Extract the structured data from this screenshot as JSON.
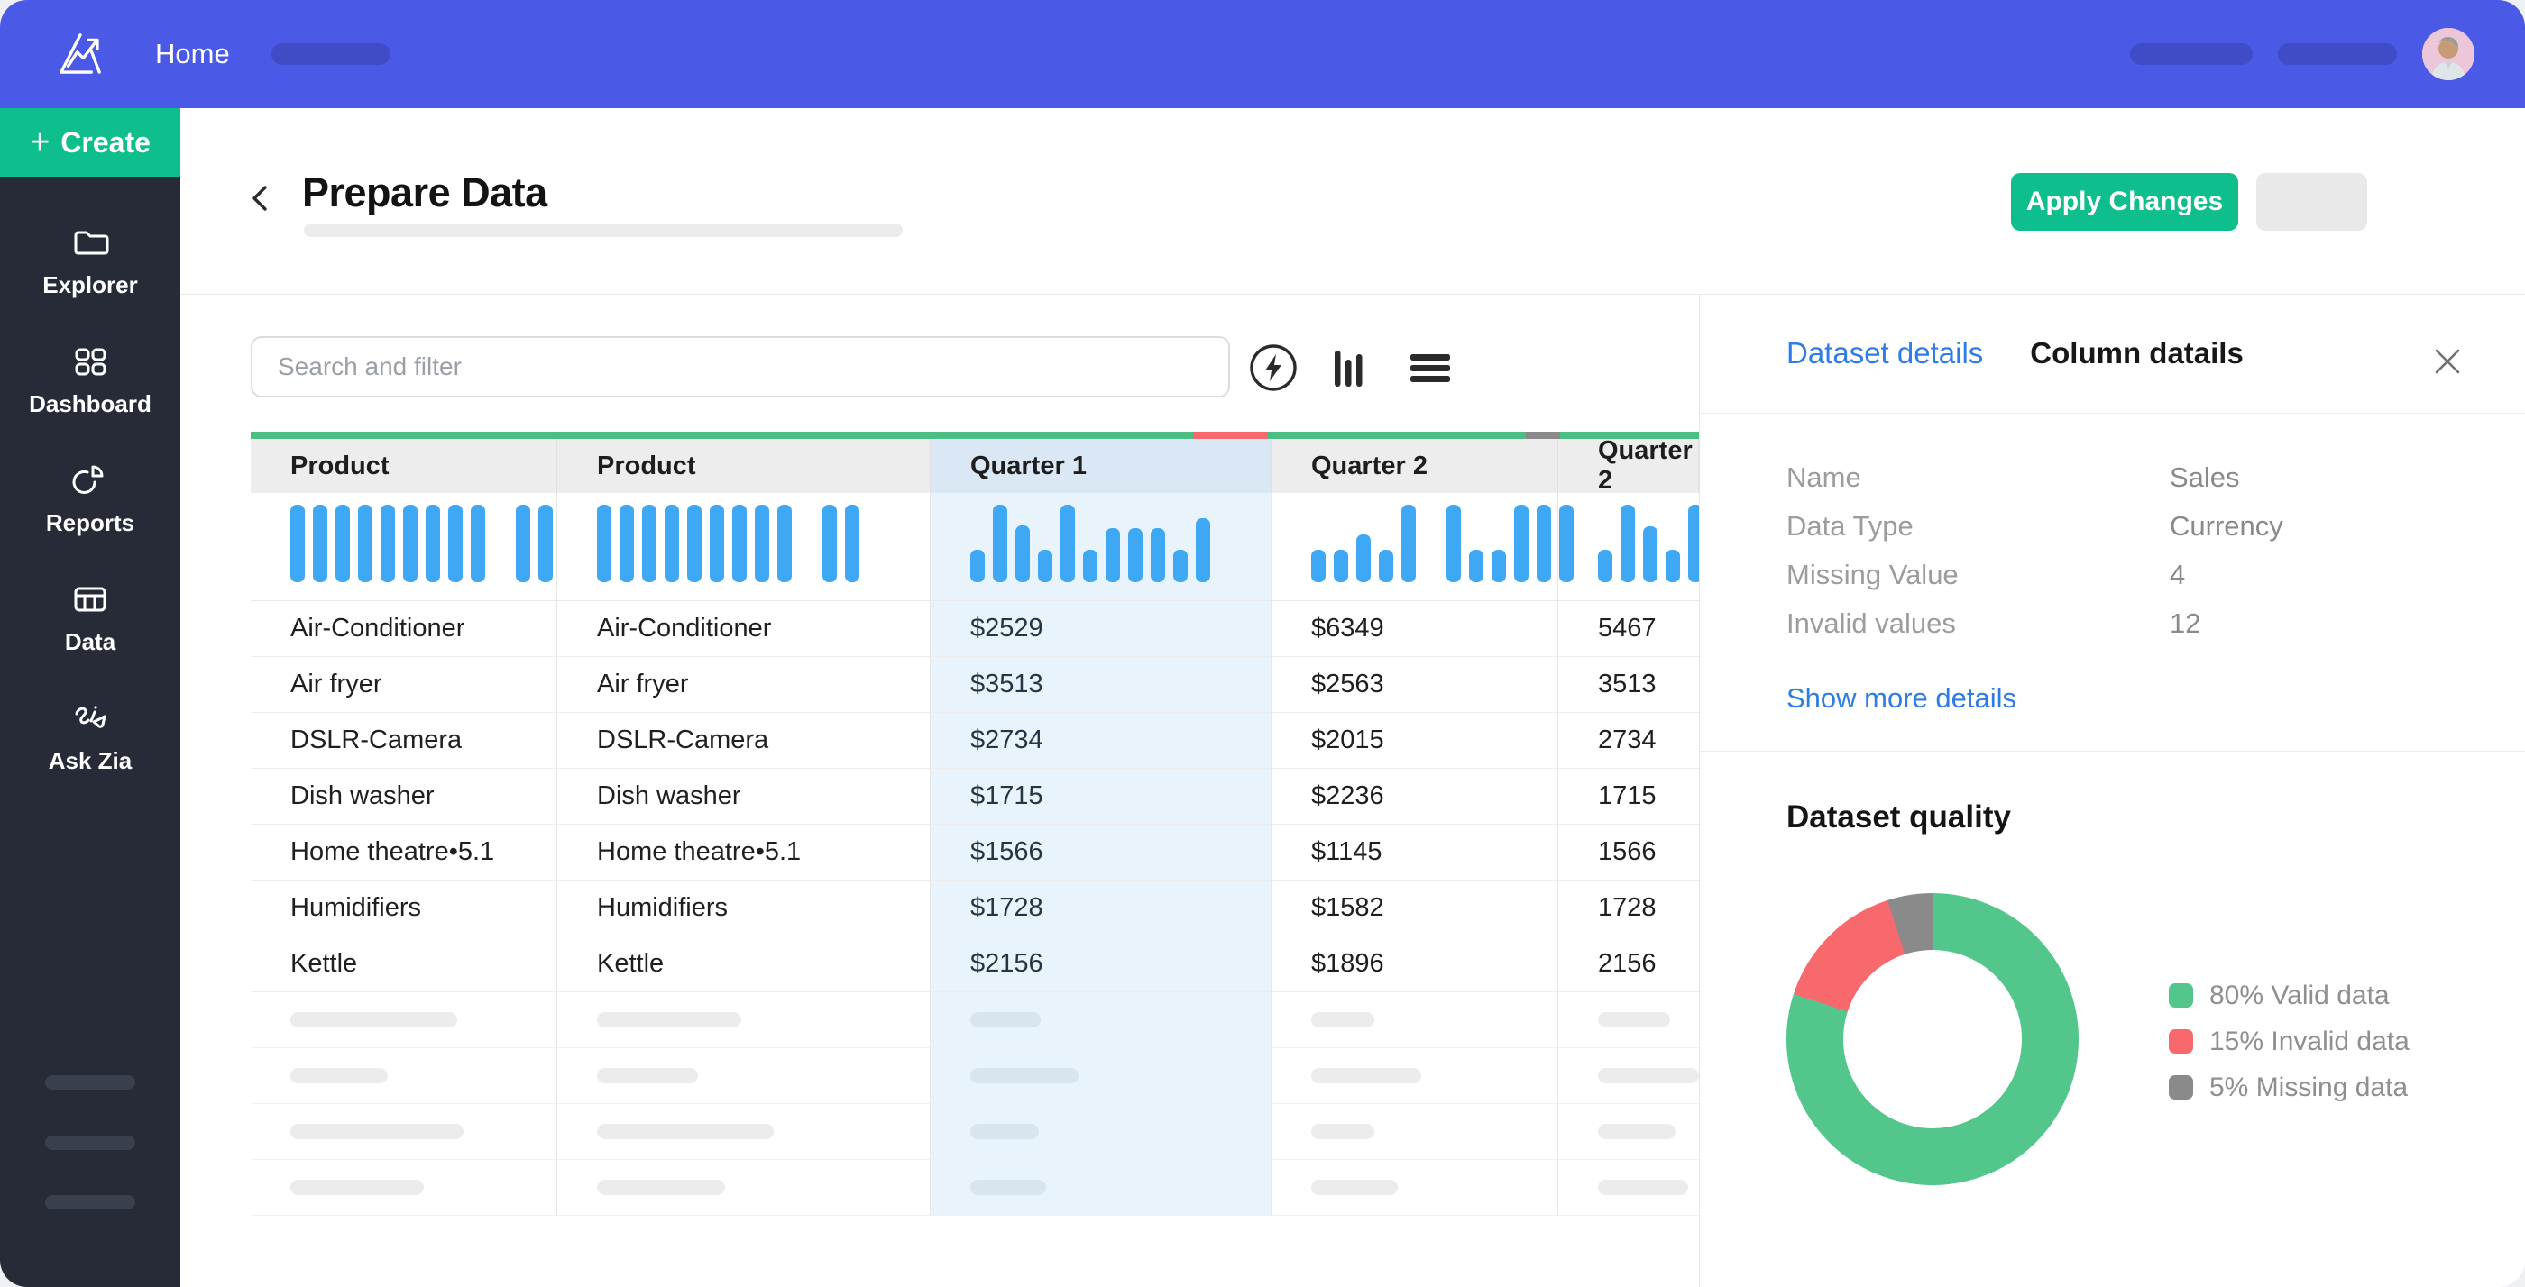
{
  "topbar": {
    "home_label": "Home"
  },
  "sidebar": {
    "create_label": "Create",
    "items": [
      {
        "label": "Explorer"
      },
      {
        "label": "Dashboard"
      },
      {
        "label": "Reports"
      },
      {
        "label": "Data"
      },
      {
        "label": "Ask Zia"
      }
    ]
  },
  "header": {
    "title": "Prepare Data",
    "apply_label": "Apply Changes"
  },
  "toolbar": {
    "search_placeholder": "Search and filter"
  },
  "icons": {
    "plus": "+"
  },
  "table": {
    "columns": [
      {
        "label": "Product",
        "histogram": [
          1,
          1,
          1,
          1,
          1,
          1,
          1,
          1,
          1,
          null,
          1,
          1
        ]
      },
      {
        "label": "Product",
        "histogram": [
          1,
          1,
          1,
          1,
          1,
          1,
          1,
          1,
          1,
          null,
          1,
          1
        ]
      },
      {
        "label": "Quarter 1",
        "selected": true,
        "histogram": [
          0.42,
          1,
          0.73,
          0.42,
          1,
          0.42,
          0.7,
          0.7,
          0.7,
          0.42,
          0.82
        ]
      },
      {
        "label": "Quarter 2",
        "histogram": [
          0.42,
          0.42,
          0.62,
          0.42,
          1,
          null,
          1,
          0.42,
          0.42,
          1,
          1,
          1
        ]
      },
      {
        "label": "Quarter 2",
        "histogram": [
          0.42,
          1,
          0.72,
          0.42,
          1,
          0.95
        ]
      }
    ],
    "rows": [
      [
        "Air-Conditioner",
        "Air-Conditioner",
        "$2529",
        "$6349",
        "5467"
      ],
      [
        "Air fryer",
        "Air fryer",
        "$3513",
        "$2563",
        "3513"
      ],
      [
        "DSLR-Camera",
        "DSLR-Camera",
        "$2734",
        "$2015",
        "2734"
      ],
      [
        "Dish washer",
        "Dish washer",
        "$1715",
        "$2236",
        "1715"
      ],
      [
        "Home theatre•5.1",
        "Home theatre•5.1",
        "$1566",
        "$1145",
        "1566"
      ],
      [
        "Humidifiers",
        "Humidifiers",
        "$1728",
        "$1582",
        "1728"
      ],
      [
        "Kettle",
        "Kettle",
        "$2156",
        "$1896",
        "2156"
      ]
    ]
  },
  "panel": {
    "tabs": [
      {
        "label": "Dataset details",
        "active": true
      },
      {
        "label": "Column datails",
        "active": false
      }
    ],
    "details": {
      "rows": [
        {
          "label": "Name",
          "value": "Sales"
        },
        {
          "label": "Data Type",
          "value": "Currency"
        },
        {
          "label": "Missing Value",
          "value": "4"
        },
        {
          "label": "Invalid values",
          "value": "12"
        }
      ]
    },
    "show_more_label": "Show more details",
    "quality": {
      "title": "Dataset quality",
      "slices": [
        {
          "pct": 80,
          "label": "80% Valid data",
          "color": "#53c78b"
        },
        {
          "pct": 15,
          "label": "15% Invalid data",
          "color": "#f8696e"
        },
        {
          "pct": 5,
          "label": "5% Missing data",
          "color": "#8a8a8a"
        }
      ]
    }
  },
  "chart_data": {
    "type": "pie",
    "title": "Dataset quality",
    "labels": [
      "Valid data",
      "Invalid data",
      "Missing data"
    ],
    "values": [
      80,
      15,
      5
    ],
    "unit": "%",
    "colors": [
      "#53c78b",
      "#f8696e",
      "#8a8a8a"
    ],
    "legend_position": "right"
  },
  "colors": {
    "brand_blue": "#4b59e7",
    "green": "#0ebe8c",
    "bars_blue": "#3fa8f5",
    "valid_green": "#4dbe83",
    "invalid_red": "#f8696e",
    "missing_grey": "#8a8a8a",
    "link_blue": "#2e7ce5"
  }
}
